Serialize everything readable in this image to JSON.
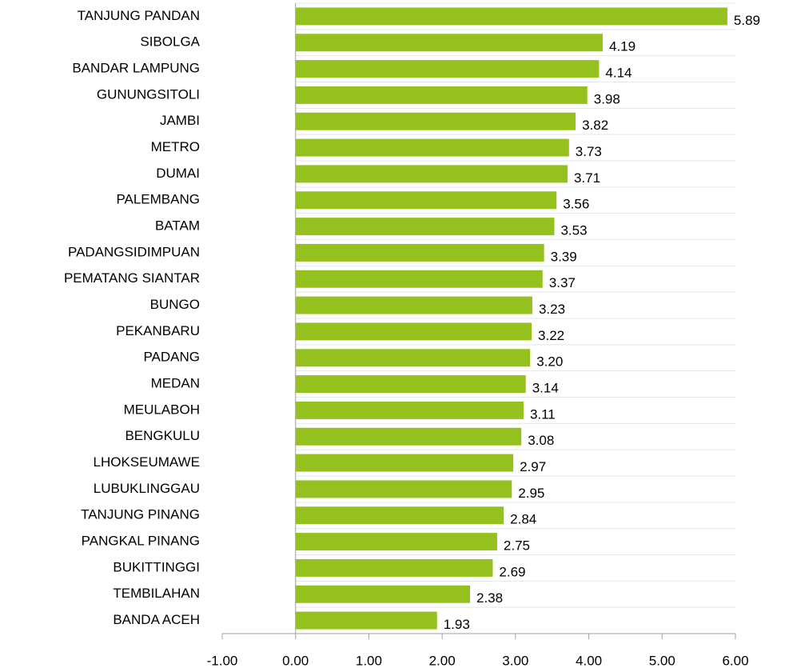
{
  "chart_data": {
    "type": "bar",
    "orientation": "horizontal",
    "categories": [
      "TANJUNG PANDAN",
      "SIBOLGA",
      "BANDAR LAMPUNG",
      "GUNUNGSITOLI",
      "JAMBI",
      "METRO",
      "DUMAI",
      "PALEMBANG",
      "BATAM",
      "PADANGSIDIMPUAN",
      "PEMATANG SIANTAR",
      "BUNGO",
      "PEKANBARU",
      "PADANG",
      "MEDAN",
      "MEULABOH",
      "BENGKULU",
      "LHOKSEUMAWE",
      "LUBUKLINGGAU",
      "TANJUNG PINANG",
      "PANGKAL PINANG",
      "BUKITTINGGI",
      "TEMBILAHAN",
      "BANDA ACEH"
    ],
    "values": [
      5.89,
      4.19,
      4.14,
      3.98,
      3.82,
      3.73,
      3.71,
      3.56,
      3.53,
      3.39,
      3.37,
      3.23,
      3.22,
      3.2,
      3.14,
      3.11,
      3.08,
      2.97,
      2.95,
      2.84,
      2.75,
      2.69,
      2.38,
      1.93
    ],
    "value_labels": [
      "5.89",
      "4.19",
      "4.14",
      "3.98",
      "3.82",
      "3.73",
      "3.71",
      "3.56",
      "3.53",
      "3.39",
      "3.37",
      "3.23",
      "3.22",
      "3.20",
      "3.14",
      "3.11",
      "3.08",
      "2.97",
      "2.95",
      "2.84",
      "2.75",
      "2.69",
      "2.38",
      "1.93"
    ],
    "color": "#95c11f",
    "xlim": [
      -1,
      6
    ],
    "xticks": [
      {
        "value": -1,
        "label": "-1.00"
      },
      {
        "value": 0,
        "label": "0.00"
      },
      {
        "value": 1,
        "label": "1.00"
      },
      {
        "value": 2,
        "label": "2.00"
      },
      {
        "value": 3,
        "label": "3.00"
      },
      {
        "value": 4,
        "label": "4.00"
      },
      {
        "value": 5,
        "label": "5.00"
      },
      {
        "value": 6,
        "label": "6.00"
      }
    ]
  }
}
